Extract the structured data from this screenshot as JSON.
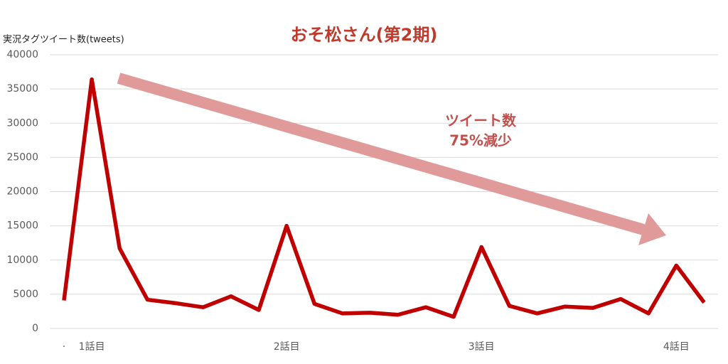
{
  "chart_data": {
    "type": "line",
    "title": "おそ松さん(第2期)",
    "y_label": "実況タグツイート数(tweets)",
    "annotation": [
      "ツイート数",
      "75%減少"
    ],
    "categories": [
      "·",
      "1話目",
      null,
      null,
      null,
      null,
      null,
      null,
      "2話目",
      null,
      null,
      null,
      null,
      null,
      null,
      "3話目",
      null,
      null,
      null,
      null,
      null,
      null,
      "4話目",
      null
    ],
    "series": [
      {
        "name": "ツイート数",
        "color": "#c00000",
        "values": [
          4100,
          36400,
          11700,
          4200,
          3700,
          3100,
          4700,
          2700,
          15000,
          3600,
          2200,
          2300,
          2000,
          3100,
          1700,
          11900,
          3300,
          2200,
          3200,
          3000,
          4300,
          2200,
          9200,
          3800
        ]
      }
    ],
    "ylim": [
      0,
      40000
    ],
    "yticks": [
      0,
      5000,
      10000,
      15000,
      20000,
      25000,
      30000,
      35000,
      40000
    ],
    "grid": true
  }
}
